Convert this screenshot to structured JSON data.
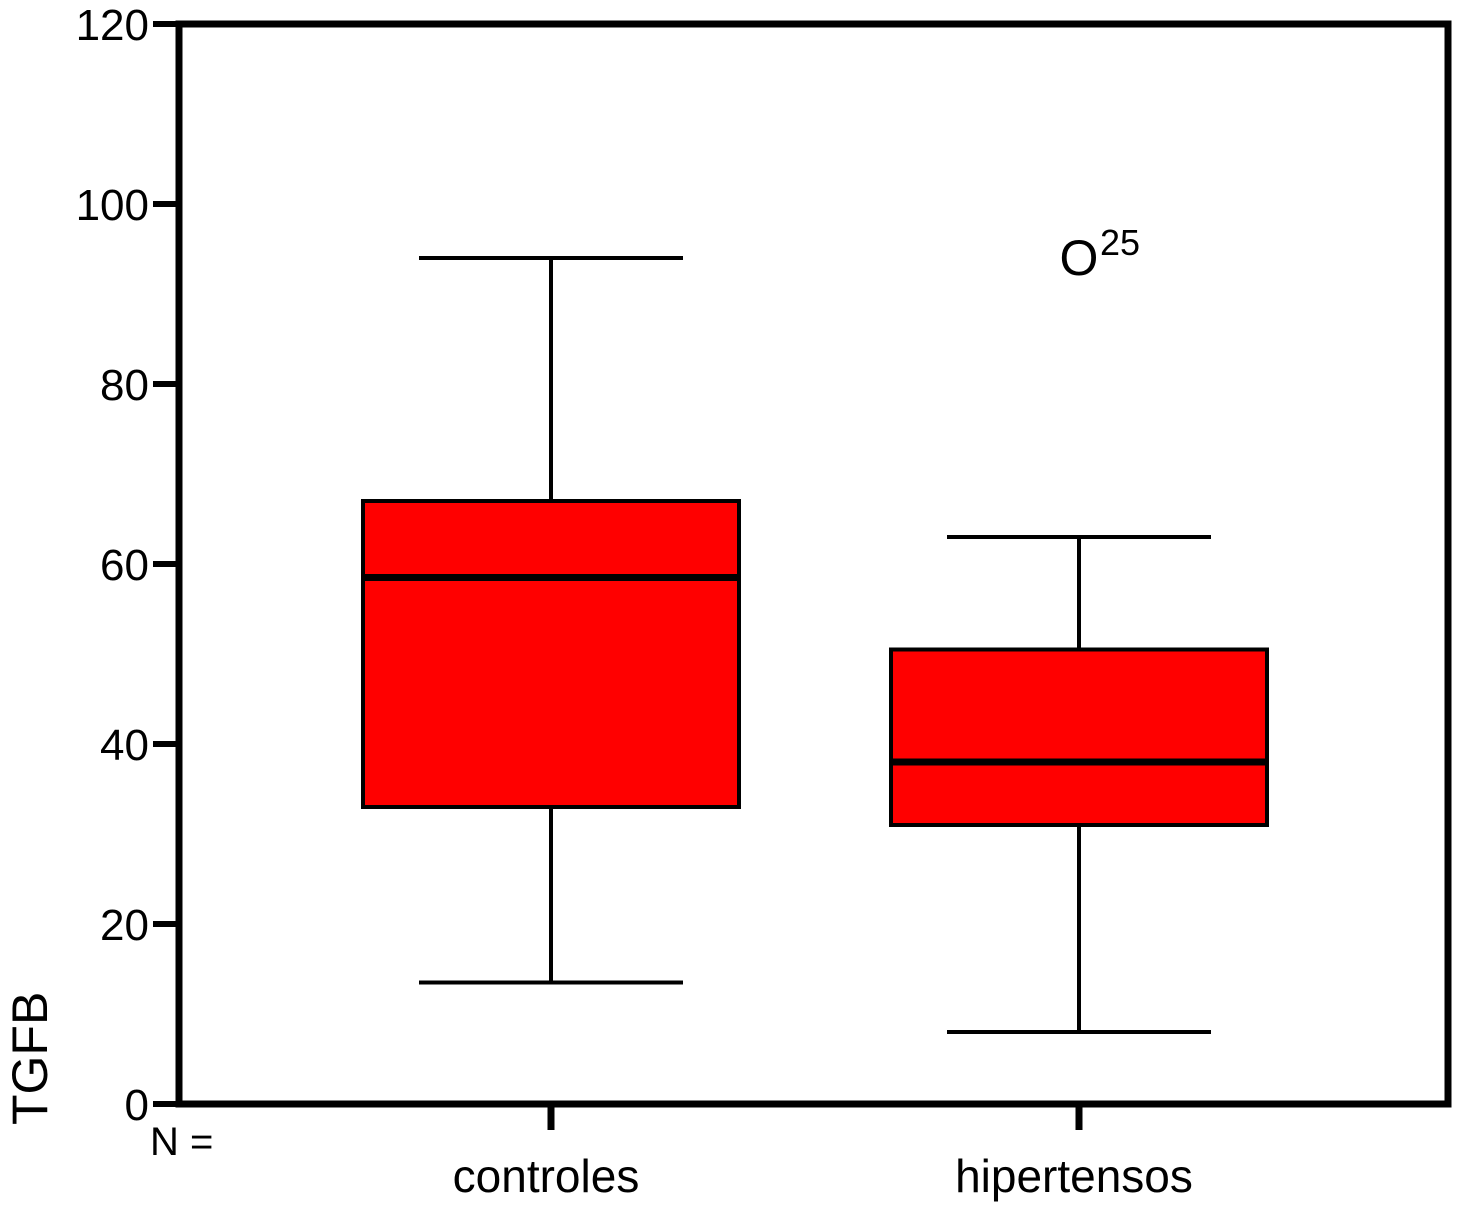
{
  "chart_data": {
    "type": "boxplot",
    "ylabel": "TGFB",
    "xlabel": "",
    "ylim": [
      0,
      120
    ],
    "yticks": [
      0,
      20,
      40,
      60,
      80,
      100,
      120
    ],
    "n_label": "N =",
    "categories": [
      "controles",
      "hipertensos"
    ],
    "boxes": [
      {
        "category": "controles",
        "whisker_low": 13.5,
        "q1": 33,
        "median": 58.5,
        "q3": 67,
        "whisker_high": 94
      },
      {
        "category": "hipertensos",
        "whisker_low": 8,
        "q1": 31,
        "median": 38,
        "q3": 50.5,
        "whisker_high": 63
      }
    ],
    "outliers": [
      {
        "category": "hipertensos",
        "value": 94,
        "marker": "O",
        "case_label": "25"
      }
    ],
    "box_color": "#ff0000",
    "line_color": "#000000",
    "grid": false,
    "legend": "none"
  }
}
